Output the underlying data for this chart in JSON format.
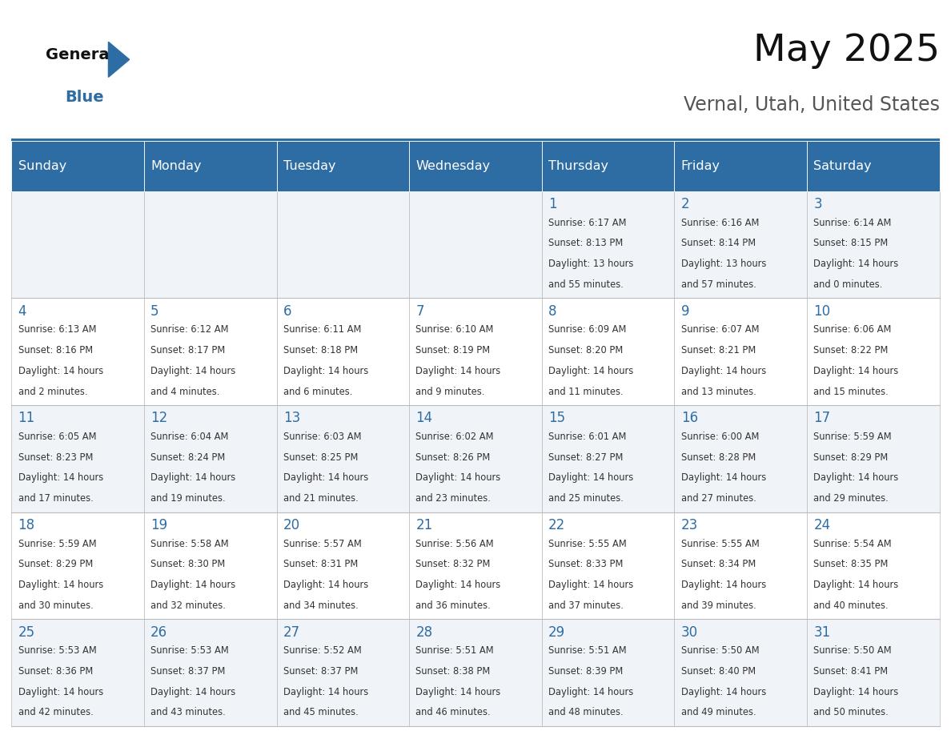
{
  "title": "May 2025",
  "subtitle": "Vernal, Utah, United States",
  "header_bg": "#2E6DA4",
  "header_text_color": "#FFFFFF",
  "days_of_week": [
    "Sunday",
    "Monday",
    "Tuesday",
    "Wednesday",
    "Thursday",
    "Friday",
    "Saturday"
  ],
  "cell_bg_odd": "#F0F4F8",
  "cell_bg_even": "#FFFFFF",
  "cell_text_color": "#333333",
  "day_num_color": "#2E6DA4",
  "grid_color": "#BBBBBB",
  "calendar": [
    [
      null,
      null,
      null,
      null,
      {
        "day": 1,
        "sunrise": "6:17 AM",
        "sunset": "8:13 PM",
        "daylight_h": "13 hours",
        "daylight_m": "and 55 minutes."
      },
      {
        "day": 2,
        "sunrise": "6:16 AM",
        "sunset": "8:14 PM",
        "daylight_h": "13 hours",
        "daylight_m": "and 57 minutes."
      },
      {
        "day": 3,
        "sunrise": "6:14 AM",
        "sunset": "8:15 PM",
        "daylight_h": "14 hours",
        "daylight_m": "and 0 minutes."
      }
    ],
    [
      {
        "day": 4,
        "sunrise": "6:13 AM",
        "sunset": "8:16 PM",
        "daylight_h": "14 hours",
        "daylight_m": "and 2 minutes."
      },
      {
        "day": 5,
        "sunrise": "6:12 AM",
        "sunset": "8:17 PM",
        "daylight_h": "14 hours",
        "daylight_m": "and 4 minutes."
      },
      {
        "day": 6,
        "sunrise": "6:11 AM",
        "sunset": "8:18 PM",
        "daylight_h": "14 hours",
        "daylight_m": "and 6 minutes."
      },
      {
        "day": 7,
        "sunrise": "6:10 AM",
        "sunset": "8:19 PM",
        "daylight_h": "14 hours",
        "daylight_m": "and 9 minutes."
      },
      {
        "day": 8,
        "sunrise": "6:09 AM",
        "sunset": "8:20 PM",
        "daylight_h": "14 hours",
        "daylight_m": "and 11 minutes."
      },
      {
        "day": 9,
        "sunrise": "6:07 AM",
        "sunset": "8:21 PM",
        "daylight_h": "14 hours",
        "daylight_m": "and 13 minutes."
      },
      {
        "day": 10,
        "sunrise": "6:06 AM",
        "sunset": "8:22 PM",
        "daylight_h": "14 hours",
        "daylight_m": "and 15 minutes."
      }
    ],
    [
      {
        "day": 11,
        "sunrise": "6:05 AM",
        "sunset": "8:23 PM",
        "daylight_h": "14 hours",
        "daylight_m": "and 17 minutes."
      },
      {
        "day": 12,
        "sunrise": "6:04 AM",
        "sunset": "8:24 PM",
        "daylight_h": "14 hours",
        "daylight_m": "and 19 minutes."
      },
      {
        "day": 13,
        "sunrise": "6:03 AM",
        "sunset": "8:25 PM",
        "daylight_h": "14 hours",
        "daylight_m": "and 21 minutes."
      },
      {
        "day": 14,
        "sunrise": "6:02 AM",
        "sunset": "8:26 PM",
        "daylight_h": "14 hours",
        "daylight_m": "and 23 minutes."
      },
      {
        "day": 15,
        "sunrise": "6:01 AM",
        "sunset": "8:27 PM",
        "daylight_h": "14 hours",
        "daylight_m": "and 25 minutes."
      },
      {
        "day": 16,
        "sunrise": "6:00 AM",
        "sunset": "8:28 PM",
        "daylight_h": "14 hours",
        "daylight_m": "and 27 minutes."
      },
      {
        "day": 17,
        "sunrise": "5:59 AM",
        "sunset": "8:29 PM",
        "daylight_h": "14 hours",
        "daylight_m": "and 29 minutes."
      }
    ],
    [
      {
        "day": 18,
        "sunrise": "5:59 AM",
        "sunset": "8:29 PM",
        "daylight_h": "14 hours",
        "daylight_m": "and 30 minutes."
      },
      {
        "day": 19,
        "sunrise": "5:58 AM",
        "sunset": "8:30 PM",
        "daylight_h": "14 hours",
        "daylight_m": "and 32 minutes."
      },
      {
        "day": 20,
        "sunrise": "5:57 AM",
        "sunset": "8:31 PM",
        "daylight_h": "14 hours",
        "daylight_m": "and 34 minutes."
      },
      {
        "day": 21,
        "sunrise": "5:56 AM",
        "sunset": "8:32 PM",
        "daylight_h": "14 hours",
        "daylight_m": "and 36 minutes."
      },
      {
        "day": 22,
        "sunrise": "5:55 AM",
        "sunset": "8:33 PM",
        "daylight_h": "14 hours",
        "daylight_m": "and 37 minutes."
      },
      {
        "day": 23,
        "sunrise": "5:55 AM",
        "sunset": "8:34 PM",
        "daylight_h": "14 hours",
        "daylight_m": "and 39 minutes."
      },
      {
        "day": 24,
        "sunrise": "5:54 AM",
        "sunset": "8:35 PM",
        "daylight_h": "14 hours",
        "daylight_m": "and 40 minutes."
      }
    ],
    [
      {
        "day": 25,
        "sunrise": "5:53 AM",
        "sunset": "8:36 PM",
        "daylight_h": "14 hours",
        "daylight_m": "and 42 minutes."
      },
      {
        "day": 26,
        "sunrise": "5:53 AM",
        "sunset": "8:37 PM",
        "daylight_h": "14 hours",
        "daylight_m": "and 43 minutes."
      },
      {
        "day": 27,
        "sunrise": "5:52 AM",
        "sunset": "8:37 PM",
        "daylight_h": "14 hours",
        "daylight_m": "and 45 minutes."
      },
      {
        "day": 28,
        "sunrise": "5:51 AM",
        "sunset": "8:38 PM",
        "daylight_h": "14 hours",
        "daylight_m": "and 46 minutes."
      },
      {
        "day": 29,
        "sunrise": "5:51 AM",
        "sunset": "8:39 PM",
        "daylight_h": "14 hours",
        "daylight_m": "and 48 minutes."
      },
      {
        "day": 30,
        "sunrise": "5:50 AM",
        "sunset": "8:40 PM",
        "daylight_h": "14 hours",
        "daylight_m": "and 49 minutes."
      },
      {
        "day": 31,
        "sunrise": "5:50 AM",
        "sunset": "8:41 PM",
        "daylight_h": "14 hours",
        "daylight_m": "and 50 minutes."
      }
    ]
  ]
}
